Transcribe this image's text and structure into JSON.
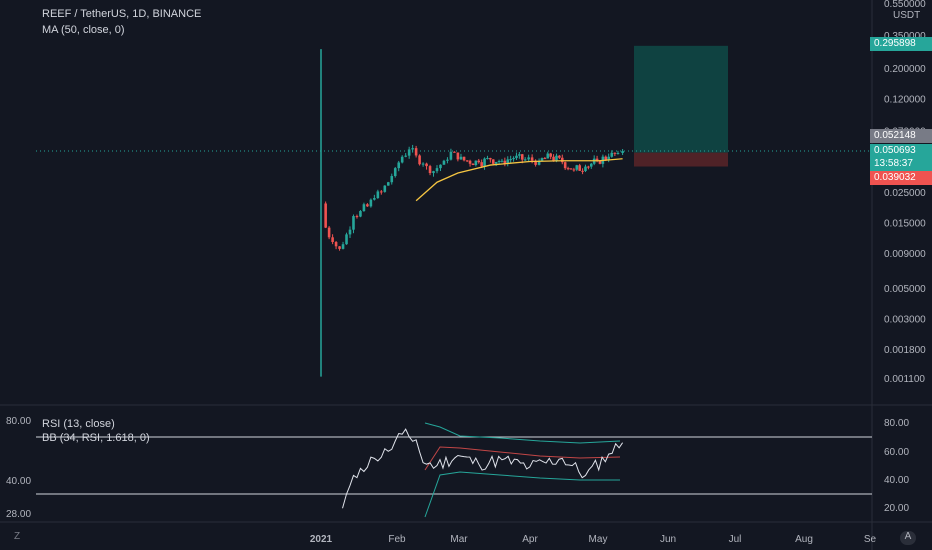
{
  "header": {
    "title": "REEF / TetherUS, 1D, BINANCE",
    "ma_label": "MA (50, close, 0)"
  },
  "price_scale": {
    "currency": "USDT",
    "top_label": "0.550000",
    "labels": [
      "0.350000",
      "0.200000",
      "0.120000",
      "0.070000",
      "0.025000",
      "0.015000",
      "0.009000",
      "0.005000",
      "0.003000",
      "0.001800",
      "0.001100"
    ],
    "tags": {
      "target": "0.295898",
      "high": "0.052148",
      "last": "0.050693",
      "countdown": "13:58:37",
      "stop": "0.039032"
    }
  },
  "rsi_panel": {
    "rsi_label": "RSI (13, close)",
    "bb_label": "BB (34, RSI, 1.618, 0)",
    "left_labels": [
      "80.00",
      "40.00",
      "28.00"
    ],
    "right_labels": [
      "80.00",
      "60.00",
      "40.00",
      "20.00"
    ]
  },
  "time_axis": {
    "labels": [
      "2021",
      "Feb",
      "Mar",
      "Apr",
      "May",
      "Jun",
      "Jul",
      "Aug",
      "Se"
    ]
  },
  "buttons": {
    "auto": "A",
    "settings_glyph": "Z"
  },
  "colors": {
    "background": "#131722",
    "up": "#26a69a",
    "down": "#ef5350",
    "ma": "#f5c542",
    "rsi": "#e0e3eb",
    "bb": "#26a69a",
    "bb_mid": "#ef5350",
    "target_zone": "#0f4a47",
    "stop_zone": "#5a2428"
  },
  "chart_data": {
    "type": "candlestick",
    "scale": "log",
    "title": "REEF / TetherUS, 1D, BINANCE",
    "ylim": [
      0.001,
      0.55
    ],
    "x_ticks": [
      "2021",
      "Feb",
      "Mar",
      "Apr",
      "May",
      "Jun",
      "Jul",
      "Aug",
      "Se"
    ],
    "series": [
      {
        "name": "Price",
        "kind": "close",
        "points": [
          [
            "2021-01-01",
            0.021
          ],
          [
            "2021-01-03",
            0.014
          ],
          [
            "2021-01-06",
            0.011
          ],
          [
            "2021-01-09",
            0.0098
          ],
          [
            "2021-01-12",
            0.0125
          ],
          [
            "2021-01-15",
            0.017
          ],
          [
            "2021-01-18",
            0.0185
          ],
          [
            "2021-01-21",
            0.02
          ],
          [
            "2021-01-24",
            0.023
          ],
          [
            "2021-01-27",
            0.0255
          ],
          [
            "2021-01-30",
            0.03
          ],
          [
            "2021-02-02",
            0.038
          ],
          [
            "2021-02-05",
            0.046
          ],
          [
            "2021-02-08",
            0.052
          ],
          [
            "2021-02-11",
            0.047
          ],
          [
            "2021-02-14",
            0.041
          ],
          [
            "2021-02-17",
            0.035
          ],
          [
            "2021-02-20",
            0.038
          ],
          [
            "2021-02-23",
            0.043
          ],
          [
            "2021-02-26",
            0.05
          ],
          [
            "2021-03-01",
            0.044
          ],
          [
            "2021-03-05",
            0.043
          ],
          [
            "2021-03-10",
            0.042
          ],
          [
            "2021-03-15",
            0.044
          ],
          [
            "2021-03-20",
            0.043
          ],
          [
            "2021-03-25",
            0.045
          ],
          [
            "2021-03-30",
            0.044
          ],
          [
            "2021-04-05",
            0.043
          ],
          [
            "2021-04-10",
            0.046
          ],
          [
            "2021-04-15",
            0.042
          ],
          [
            "2021-04-20",
            0.037
          ],
          [
            "2021-04-25",
            0.039
          ],
          [
            "2021-04-30",
            0.043
          ],
          [
            "2021-05-05",
            0.046
          ],
          [
            "2021-05-09",
            0.049
          ],
          [
            "2021-05-11",
            0.0507
          ]
        ]
      },
      {
        "name": "MA (50, close, 0)",
        "points": [
          [
            "2021-02-11",
            0.022
          ],
          [
            "2021-02-20",
            0.03
          ],
          [
            "2021-03-01",
            0.035
          ],
          [
            "2021-03-15",
            0.04
          ],
          [
            "2021-04-01",
            0.0425
          ],
          [
            "2021-04-15",
            0.043
          ],
          [
            "2021-05-01",
            0.043
          ],
          [
            "2021-05-11",
            0.0445
          ]
        ]
      },
      {
        "name": "RSI (13, close)",
        "points": [
          [
            "2021-01-12",
            30
          ],
          [
            "2021-01-18",
            48
          ],
          [
            "2021-01-24",
            55
          ],
          [
            "2021-01-30",
            60
          ],
          [
            "2021-02-05",
            72
          ],
          [
            "2021-02-11",
            68
          ],
          [
            "2021-02-14",
            52
          ],
          [
            "2021-02-20",
            50
          ],
          [
            "2021-03-01",
            57
          ],
          [
            "2021-03-10",
            51
          ],
          [
            "2021-03-20",
            54
          ],
          [
            "2021-04-01",
            49
          ],
          [
            "2021-04-15",
            55
          ],
          [
            "2021-04-25",
            43
          ],
          [
            "2021-05-05",
            58
          ],
          [
            "2021-05-11",
            66
          ]
        ]
      }
    ]
  }
}
